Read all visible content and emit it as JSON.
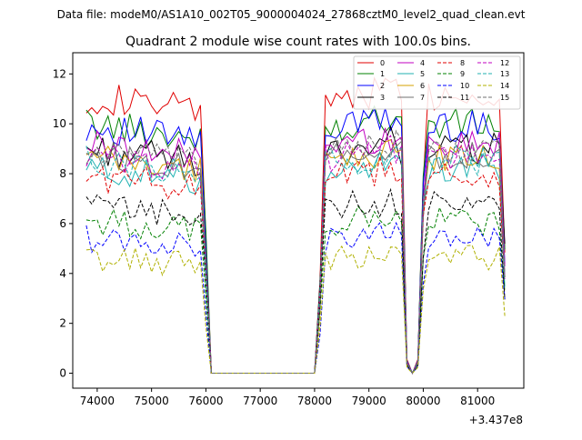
{
  "chart_data": {
    "type": "line",
    "supertitle": "Data file: modeM0/AS1A10_002T05_9000004024_27868cztM0_level2_quad_clean.evt",
    "title": "Quadrant 2 module wise count rates with 100.0s bins.",
    "xlabel": "",
    "ylabel": "",
    "x_offset_label": "+3.437e8",
    "xlim": [
      73550,
      81850
    ],
    "ylim": [
      -0.6,
      12.85
    ],
    "x_ticks": [
      74000,
      75000,
      76000,
      77000,
      78000,
      79000,
      80000,
      81000
    ],
    "x_tick_labels": [
      "74000",
      "75000",
      "76000",
      "77000",
      "78000",
      "79000",
      "80000",
      "81000"
    ],
    "y_ticks": [
      0,
      2,
      4,
      6,
      8,
      10,
      12
    ],
    "y_tick_labels": [
      "0",
      "2",
      "4",
      "6",
      "8",
      "10",
      "12"
    ],
    "grid": false,
    "legend_position": "top-right",
    "legend_columns": 4,
    "segments": [
      {
        "x_start": 73800,
        "x_end": 76000,
        "shape": "active"
      },
      {
        "x_start": 76100,
        "x_end": 78000,
        "shape": "zero"
      },
      {
        "x_start": 78100,
        "x_end": 79600,
        "shape": "active"
      },
      {
        "x_start": 79700,
        "x_end": 79900,
        "shape": "dip"
      },
      {
        "x_start": 80000,
        "x_end": 81400,
        "shape": "active"
      },
      {
        "x_start": 81500,
        "x_end": 81500,
        "shape": "end"
      }
    ],
    "series": [
      {
        "name": "0",
        "color": "#e00000",
        "dash": "solid",
        "level": 11.1
      },
      {
        "name": "1",
        "color": "#008000",
        "dash": "solid",
        "level": 10.0
      },
      {
        "name": "2",
        "color": "#0000ff",
        "dash": "solid",
        "level": 9.9
      },
      {
        "name": "3",
        "color": "#000000",
        "dash": "solid",
        "level": 9.0
      },
      {
        "name": "4",
        "color": "#c000c0",
        "dash": "solid",
        "level": 9.2
      },
      {
        "name": "5",
        "color": "#20b2b2",
        "dash": "solid",
        "level": 8.2
      },
      {
        "name": "6",
        "color": "#d4a000",
        "dash": "solid",
        "level": 8.6
      },
      {
        "name": "7",
        "color": "#707070",
        "dash": "solid",
        "level": 8.8
      },
      {
        "name": "8",
        "color": "#e00000",
        "dash": "dashed",
        "level": 7.9
      },
      {
        "name": "9",
        "color": "#008000",
        "dash": "dashed",
        "level": 6.1
      },
      {
        "name": "10",
        "color": "#0000ff",
        "dash": "dashed",
        "level": 5.4
      },
      {
        "name": "11",
        "color": "#000000",
        "dash": "dashed",
        "level": 6.7
      },
      {
        "name": "12",
        "color": "#c000c0",
        "dash": "dashed",
        "level": 8.7
      },
      {
        "name": "13",
        "color": "#20b2b2",
        "dash": "dashed",
        "level": 8.5
      },
      {
        "name": "14",
        "color": "#b0b000",
        "dash": "dashed",
        "level": 4.6
      },
      {
        "name": "15",
        "color": "#707070",
        "dash": "dashed",
        "level": 8.9
      }
    ]
  }
}
